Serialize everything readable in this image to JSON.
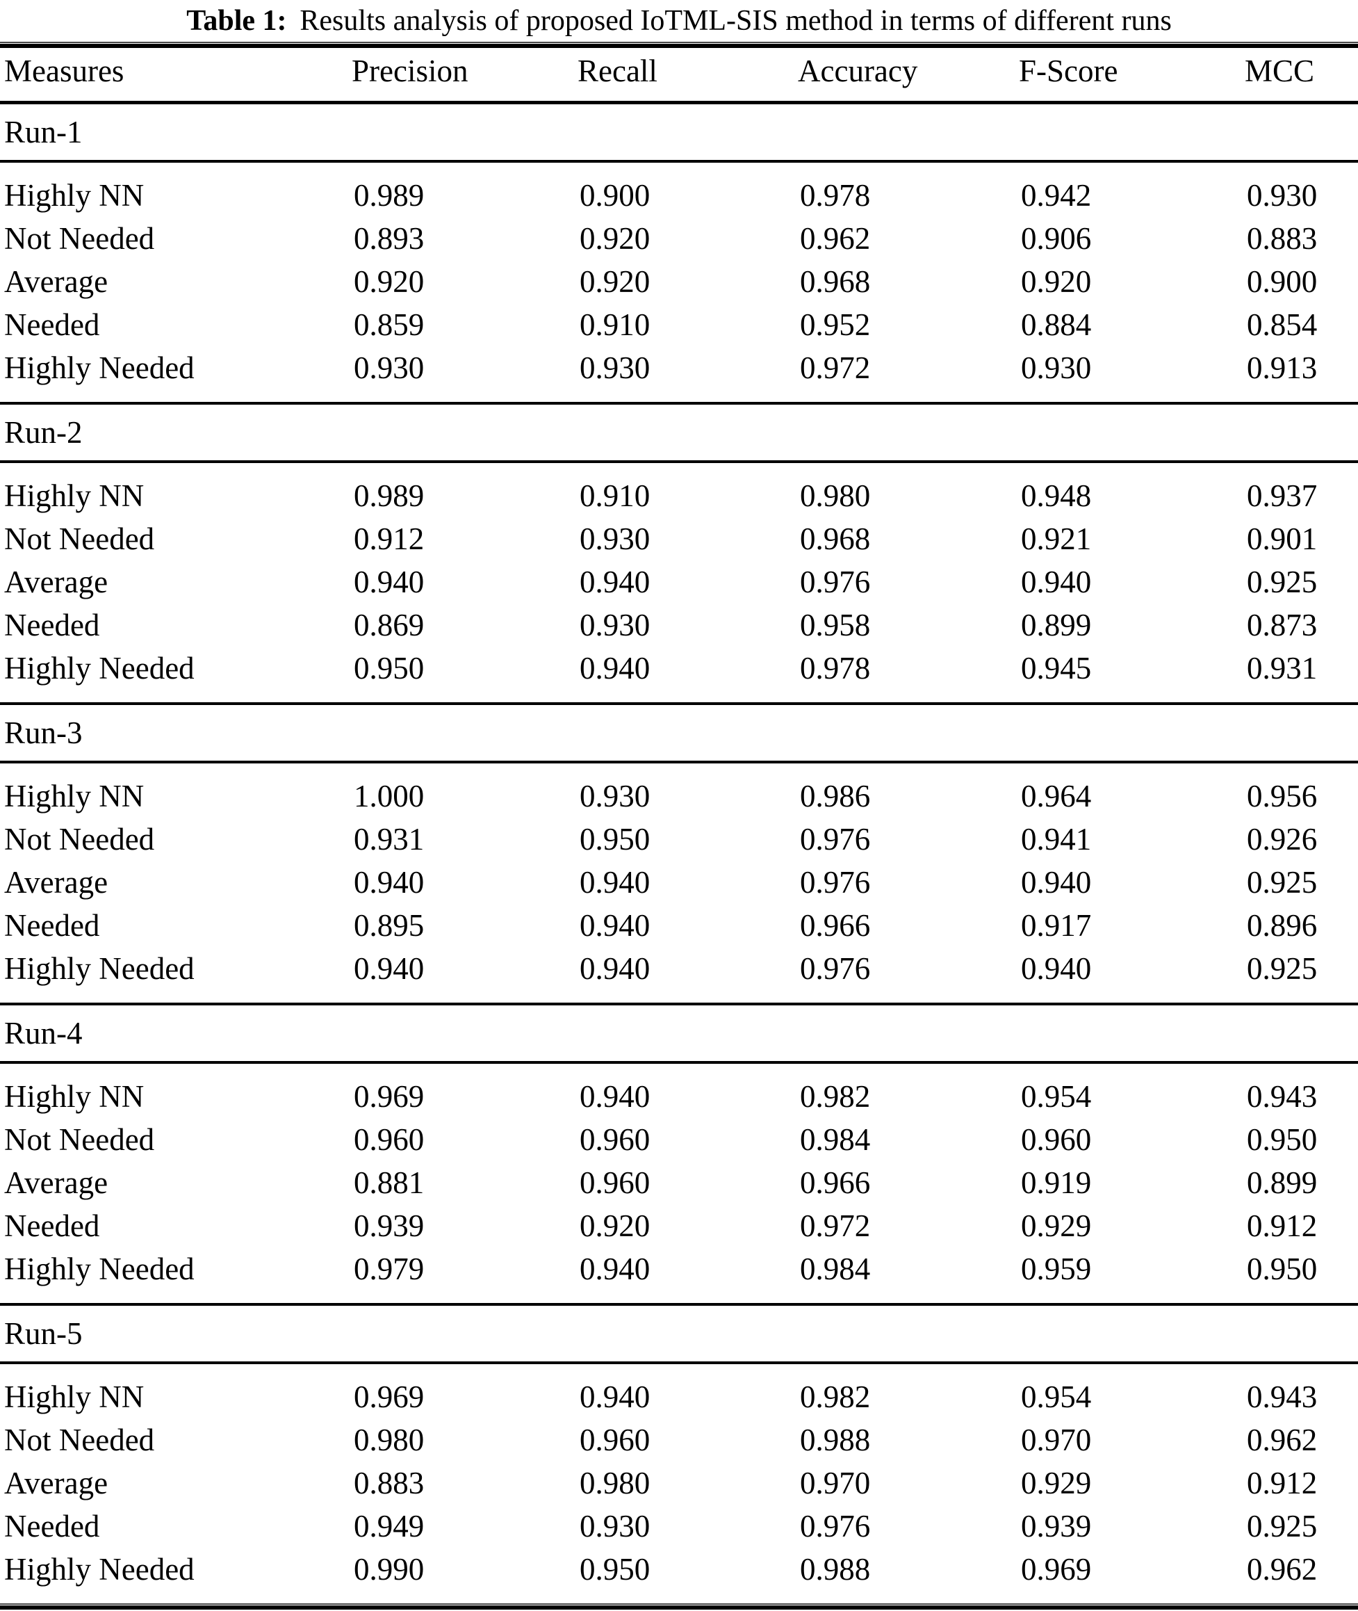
{
  "title": {
    "label": "Table 1:",
    "text": "Results analysis of proposed IoTML-SIS method in terms of different runs"
  },
  "columns": [
    "Measures",
    "Precision",
    "Recall",
    "Accuracy",
    "F-Score",
    "MCC"
  ],
  "sections": [
    {
      "run": "Run-1",
      "rows": [
        {
          "measure": "Highly NN",
          "values": [
            "0.989",
            "0.900",
            "0.978",
            "0.942",
            "0.930"
          ]
        },
        {
          "measure": "Not Needed",
          "values": [
            "0.893",
            "0.920",
            "0.962",
            "0.906",
            "0.883"
          ]
        },
        {
          "measure": "Average",
          "values": [
            "0.920",
            "0.920",
            "0.968",
            "0.920",
            "0.900"
          ]
        },
        {
          "measure": "Needed",
          "values": [
            "0.859",
            "0.910",
            "0.952",
            "0.884",
            "0.854"
          ]
        },
        {
          "measure": "Highly Needed",
          "values": [
            "0.930",
            "0.930",
            "0.972",
            "0.930",
            "0.913"
          ]
        }
      ]
    },
    {
      "run": "Run-2",
      "rows": [
        {
          "measure": "Highly NN",
          "values": [
            "0.989",
            "0.910",
            "0.980",
            "0.948",
            "0.937"
          ]
        },
        {
          "measure": "Not Needed",
          "values": [
            "0.912",
            "0.930",
            "0.968",
            "0.921",
            "0.901"
          ]
        },
        {
          "measure": "Average",
          "values": [
            "0.940",
            "0.940",
            "0.976",
            "0.940",
            "0.925"
          ]
        },
        {
          "measure": "Needed",
          "values": [
            "0.869",
            "0.930",
            "0.958",
            "0.899",
            "0.873"
          ]
        },
        {
          "measure": "Highly Needed",
          "values": [
            "0.950",
            "0.940",
            "0.978",
            "0.945",
            "0.931"
          ]
        }
      ]
    },
    {
      "run": "Run-3",
      "rows": [
        {
          "measure": "Highly NN",
          "values": [
            "1.000",
            "0.930",
            "0.986",
            "0.964",
            "0.956"
          ]
        },
        {
          "measure": "Not Needed",
          "values": [
            "0.931",
            "0.950",
            "0.976",
            "0.941",
            "0.926"
          ]
        },
        {
          "measure": "Average",
          "values": [
            "0.940",
            "0.940",
            "0.976",
            "0.940",
            "0.925"
          ]
        },
        {
          "measure": "Needed",
          "values": [
            "0.895",
            "0.940",
            "0.966",
            "0.917",
            "0.896"
          ]
        },
        {
          "measure": "Highly Needed",
          "values": [
            "0.940",
            "0.940",
            "0.976",
            "0.940",
            "0.925"
          ]
        }
      ]
    },
    {
      "run": "Run-4",
      "rows": [
        {
          "measure": "Highly NN",
          "values": [
            "0.969",
            "0.940",
            "0.982",
            "0.954",
            "0.943"
          ]
        },
        {
          "measure": "Not Needed",
          "values": [
            "0.960",
            "0.960",
            "0.984",
            "0.960",
            "0.950"
          ]
        },
        {
          "measure": "Average",
          "values": [
            "0.881",
            "0.960",
            "0.966",
            "0.919",
            "0.899"
          ]
        },
        {
          "measure": "Needed",
          "values": [
            "0.939",
            "0.920",
            "0.972",
            "0.929",
            "0.912"
          ]
        },
        {
          "measure": "Highly Needed",
          "values": [
            "0.979",
            "0.940",
            "0.984",
            "0.959",
            "0.950"
          ]
        }
      ]
    },
    {
      "run": "Run-5",
      "rows": [
        {
          "measure": "Highly NN",
          "values": [
            "0.969",
            "0.940",
            "0.982",
            "0.954",
            "0.943"
          ]
        },
        {
          "measure": "Not Needed",
          "values": [
            "0.980",
            "0.960",
            "0.988",
            "0.970",
            "0.962"
          ]
        },
        {
          "measure": "Average",
          "values": [
            "0.883",
            "0.980",
            "0.970",
            "0.929",
            "0.912"
          ]
        },
        {
          "measure": "Needed",
          "values": [
            "0.949",
            "0.930",
            "0.976",
            "0.939",
            "0.925"
          ]
        },
        {
          "measure": "Highly Needed",
          "values": [
            "0.990",
            "0.950",
            "0.988",
            "0.969",
            "0.962"
          ]
        }
      ]
    }
  ]
}
